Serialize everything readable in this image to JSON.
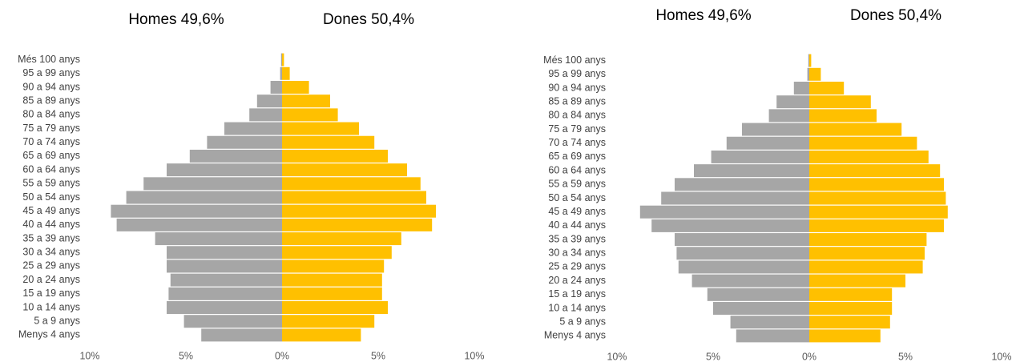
{
  "chart_data": [
    {
      "type": "pyramid",
      "categories": [
        "Més 100 anys",
        "95 a 99 anys",
        "90 a 94 anys",
        "85 a 89 anys",
        "80 a 84 anys",
        "75 a 79 anys",
        "70 a 74 anys",
        "65 a 69 anys",
        "60 a 64 anys",
        "55 a 59 anys",
        "50 a 54 anys",
        "45 a 49 anys",
        "40 a 44 anys",
        "35 a 39 anys",
        "30 a 34 anys",
        "25 a 29 anys",
        "20 a 24 anys",
        "15 a 19 anys",
        "10 a 14 anys",
        "5 a 9 anys",
        "Menys 4 anys"
      ],
      "series": [
        {
          "name": "Homes  49,6%",
          "color": "#a6a6a6",
          "values": [
            -0.05,
            -0.1,
            -0.6,
            -1.3,
            -1.7,
            -3.0,
            -3.9,
            -4.8,
            -6.0,
            -7.2,
            -8.1,
            -8.9,
            -8.6,
            -6.6,
            -6.0,
            -6.0,
            -5.8,
            -5.9,
            -6.0,
            -5.1,
            -4.2
          ]
        },
        {
          "name": "Dones 50,4%",
          "color": "#ffc000",
          "values": [
            0.1,
            0.4,
            1.4,
            2.5,
            2.9,
            4.0,
            4.8,
            5.5,
            6.5,
            7.2,
            7.5,
            8.0,
            7.8,
            6.2,
            5.7,
            5.3,
            5.2,
            5.2,
            5.5,
            4.8,
            4.1
          ]
        }
      ],
      "xlim": [
        -10,
        10
      ],
      "xticks": [
        {
          "value": -10,
          "label": "10%"
        },
        {
          "value": -5,
          "label": "5%"
        },
        {
          "value": 0,
          "label": "0%"
        },
        {
          "value": 5,
          "label": "5%"
        },
        {
          "value": 10,
          "label": "10%"
        }
      ]
    },
    {
      "type": "pyramid",
      "categories": [
        "Més 100 anys",
        "95 a 99 anys",
        "90 a 94 anys",
        "85 a 89 anys",
        "80 a 84 anys",
        "75 a 79 anys",
        "70 a 74 anys",
        "65 a 69 anys",
        "60 a 64 anys",
        "55 a 59 anys",
        "50 a 54 anys",
        "45 a 49 anys",
        "40 a 44 anys",
        "35 a 39 anys",
        "30 a 34 anys",
        "25 a 29 anys",
        "20 a 24 anys",
        "15 a 19 anys",
        "10 a 14 anys",
        "5 a 9 anys",
        "Menys 4 anys"
      ],
      "series": [
        {
          "name": "Homes  49,6%",
          "color": "#a6a6a6",
          "values": [
            -0.05,
            -0.1,
            -0.8,
            -1.7,
            -2.1,
            -3.5,
            -4.3,
            -5.1,
            -6.0,
            -7.0,
            -7.7,
            -8.8,
            -8.2,
            -7.0,
            -6.9,
            -6.8,
            -6.1,
            -5.3,
            -5.0,
            -4.1,
            -3.8
          ]
        },
        {
          "name": "Dones 50,4%",
          "color": "#ffc000",
          "values": [
            0.1,
            0.6,
            1.8,
            3.2,
            3.5,
            4.8,
            5.6,
            6.2,
            6.8,
            7.0,
            7.1,
            7.2,
            7.0,
            6.1,
            6.0,
            5.9,
            5.0,
            4.3,
            4.3,
            4.2,
            3.7
          ]
        }
      ],
      "xlim": [
        -10,
        10
      ],
      "xticks": [
        {
          "value": -10,
          "label": "10%"
        },
        {
          "value": -5,
          "label": "5%"
        },
        {
          "value": 0,
          "label": "0%"
        },
        {
          "value": 5,
          "label": "5%"
        },
        {
          "value": 10,
          "label": "10%"
        }
      ]
    }
  ]
}
